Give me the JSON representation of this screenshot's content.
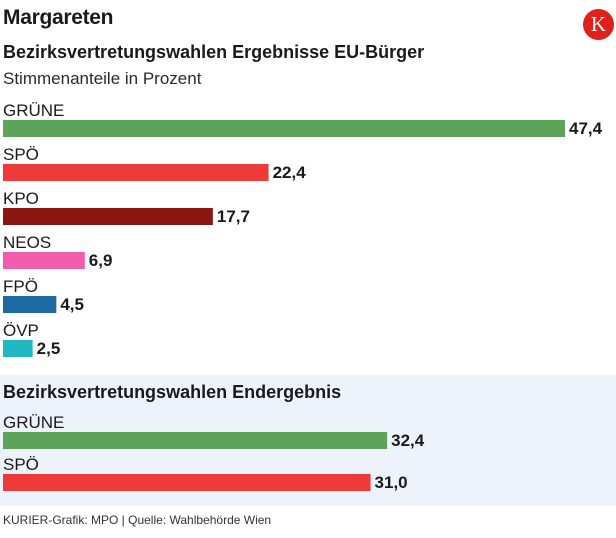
{
  "header": {
    "title": "Margareten",
    "logo_letter": "K"
  },
  "footer": {
    "source": "KURIER-Grafik: MPO | Quelle: Wahlbehörde Wien"
  },
  "chart_data": [
    {
      "type": "bar",
      "orientation": "horizontal",
      "title": "Bezirksvertretungswahlen Ergebnisse EU-Bürger",
      "subtitle": "Stimmenanteile in Prozent",
      "xlim": [
        0,
        47.4
      ],
      "categories": [
        "GRÜNE",
        "SPÖ",
        "KPO",
        "NEOS",
        "FPÖ",
        "ÖVP"
      ],
      "values": [
        47.4,
        22.4,
        17.7,
        6.9,
        4.5,
        2.5
      ],
      "value_labels": [
        "47,4",
        "22,4",
        "17,7",
        "6,9",
        "4,5",
        "2,5"
      ],
      "colors": [
        "#5ea35a",
        "#ef3a3a",
        "#8b1510",
        "#f25cac",
        "#1e6aa2",
        "#1fb8c2"
      ]
    },
    {
      "type": "bar",
      "orientation": "horizontal",
      "title": "Bezirksvertretungswahlen Endergebnis",
      "xlim": [
        0,
        47.4
      ],
      "categories": [
        "GRÜNE",
        "SPÖ"
      ],
      "values": [
        32.4,
        31.0
      ],
      "value_labels": [
        "32,4",
        "31,0"
      ],
      "colors": [
        "#5ea35a",
        "#ef3a3a"
      ]
    }
  ]
}
